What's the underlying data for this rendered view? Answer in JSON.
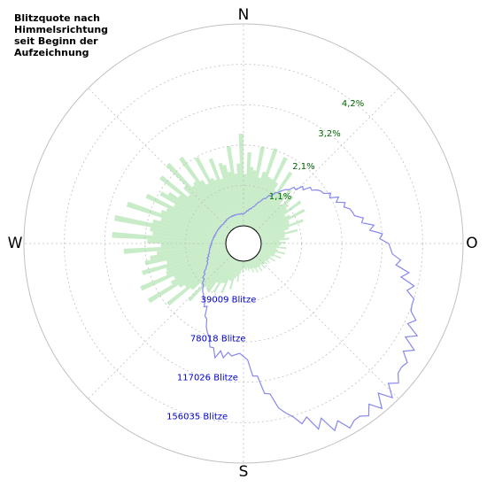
{
  "title_lines": [
    "Blitzquote nach",
    "Himmelsrichtung",
    "seit Beginn der",
    "Aufzeichnung"
  ],
  "colors": {
    "ratio_fill": "#c8ecc8",
    "count_line": "#8888ee",
    "grid": "#c0c0c0",
    "ratio_label": "#006400",
    "count_label": "#0000cc"
  },
  "chart_data": {
    "type": "polar",
    "direction_labels": [
      "N",
      "O",
      "S",
      "W"
    ],
    "ratio_rings": {
      "values": [
        1.1,
        2.1,
        3.2,
        4.2
      ],
      "labels": [
        "1,1%",
        "2,1%",
        "3,2%",
        "4,2%"
      ],
      "max": 5.3
    },
    "count_rings": {
      "values": [
        39009,
        78018,
        117026,
        156035
      ],
      "labels": [
        "39009 Blitze",
        "78018 Blitze",
        "117026 Blitze",
        "156035 Blitze"
      ],
      "max": 195044
    },
    "series": [
      {
        "type": "bar",
        "unit": "%",
        "angles_deg": [
          0,
          30,
          60,
          90,
          120,
          150,
          180,
          210,
          240,
          270,
          300,
          330,
          360
        ],
        "values": [
          2.5,
          2.0,
          1.4,
          0.8,
          0.5,
          0.4,
          0.3,
          1.2,
          2.5,
          3.1,
          2.8,
          2.2,
          2.5
        ]
      },
      {
        "type": "line",
        "unit": "Blitze",
        "angles_deg": [
          0,
          15,
          30,
          45,
          60,
          75,
          90,
          105,
          120,
          135,
          150,
          165,
          180,
          195,
          210,
          225,
          240,
          255,
          270,
          285,
          300,
          315,
          330,
          345,
          360
        ],
        "values": [
          12000,
          20000,
          38000,
          62000,
          85000,
          104000,
          135000,
          162000,
          178000,
          190000,
          195000,
          170000,
          100000,
          104000,
          60000,
          40000,
          24000,
          18000,
          15000,
          13000,
          12000,
          11000,
          12000,
          12000,
          12000
        ]
      }
    ]
  }
}
